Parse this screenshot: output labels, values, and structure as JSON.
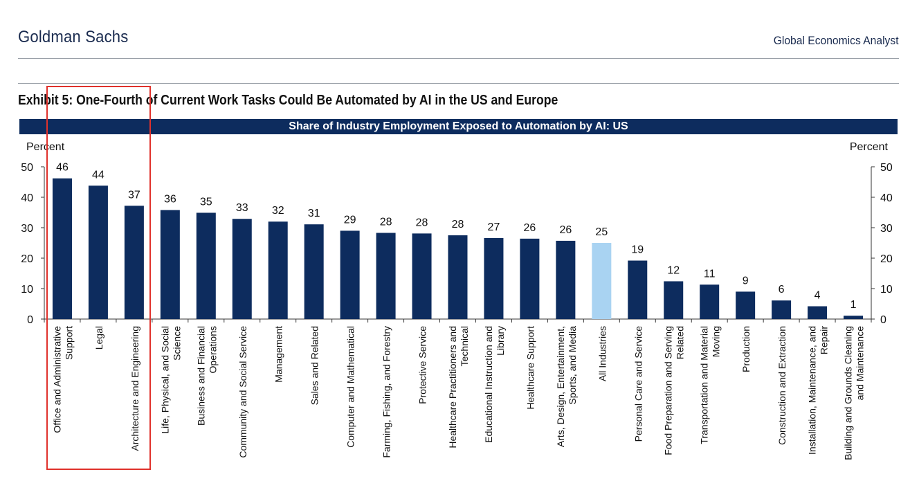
{
  "header": {
    "brand": "Goldman Sachs",
    "publication": "Global Economics Analyst"
  },
  "exhibit_title": "Exhibit 5: One-Fourth of Current Work Tasks Could Be Automated by AI in the US and Europe",
  "colors": {
    "bar": "#0d2c5e",
    "bar_highlight": "#a9d3f2",
    "banner": "#0d2c5e",
    "annotation_box": "#e0312b"
  },
  "chart_data": {
    "type": "bar",
    "title": "Share of Industry Employment Exposed to Automation by AI: US",
    "ylabel_left": "Percent",
    "ylabel_right": "Percent",
    "ylim": [
      0,
      50
    ],
    "yticks": [
      0,
      10,
      20,
      30,
      40,
      50
    ],
    "grid": false,
    "categories": [
      "Office and Administrative Support",
      "Legal",
      "Architecture and Engineering",
      "Life, Physical, and Social Science",
      "Business and Financial Operations",
      "Community and Social Service",
      "Management",
      "Sales and Related",
      "Computer and Mathematical",
      "Farming, Fishing, and Forestry",
      "Protective Service",
      "Healthcare Practitioners and Technical",
      "Educational Instruction and Library",
      "Healthcare Support",
      "Arts, Design, Entertainment, Sports, and Media",
      "All Industries",
      "Personal Care and Service",
      "Food Preparation and Serving Related",
      "Transportation and Material Moving",
      "Production",
      "Construction and Extraction",
      "Installation, Maintenance, and Repair",
      "Building and Grounds Cleaning and Maintenance"
    ],
    "category_label_lines": [
      [
        "Office and Administrative",
        "Support"
      ],
      [
        "Legal"
      ],
      [
        "Architecture and Engineering"
      ],
      [
        "Life, Physical, and Social",
        "Science"
      ],
      [
        "Business and Financial",
        "Operations"
      ],
      [
        "Community and Social Service"
      ],
      [
        "Management"
      ],
      [
        "Sales and Related"
      ],
      [
        "Computer and Mathematical"
      ],
      [
        "Farming, Fishing, and Forestry"
      ],
      [
        "Protective Service"
      ],
      [
        "Healthcare Practitioners and",
        "Technical"
      ],
      [
        "Educational Instruction and",
        "Library"
      ],
      [
        "Healthcare Support"
      ],
      [
        "Arts, Design, Entertainment,",
        "Sports, and Media"
      ],
      [
        "All Industries"
      ],
      [
        "Personal Care and Service"
      ],
      [
        "Food Preparation and Serving",
        "Related"
      ],
      [
        "Transportation and Material",
        "Moving"
      ],
      [
        "Production"
      ],
      [
        "Construction and Extraction"
      ],
      [
        "Installation, Maintenance, and",
        "Repair"
      ],
      [
        "Building and Grounds Cleaning",
        "and Maintenance"
      ]
    ],
    "values": [
      46,
      44,
      37,
      36,
      35,
      33,
      32,
      31,
      29,
      28,
      28,
      28,
      27,
      26,
      26,
      25,
      19,
      12,
      11,
      9,
      6,
      4,
      1
    ],
    "plotted_values": [
      46.2,
      43.8,
      37.2,
      35.8,
      34.9,
      32.9,
      32.0,
      31.1,
      29.0,
      28.3,
      28.1,
      27.5,
      26.6,
      26.4,
      25.7,
      25.0,
      19.2,
      12.4,
      11.3,
      9.0,
      6.1,
      4.2,
      1.1
    ],
    "highlighted_category": "All Industries",
    "annotation": "red box around the first three categories"
  }
}
